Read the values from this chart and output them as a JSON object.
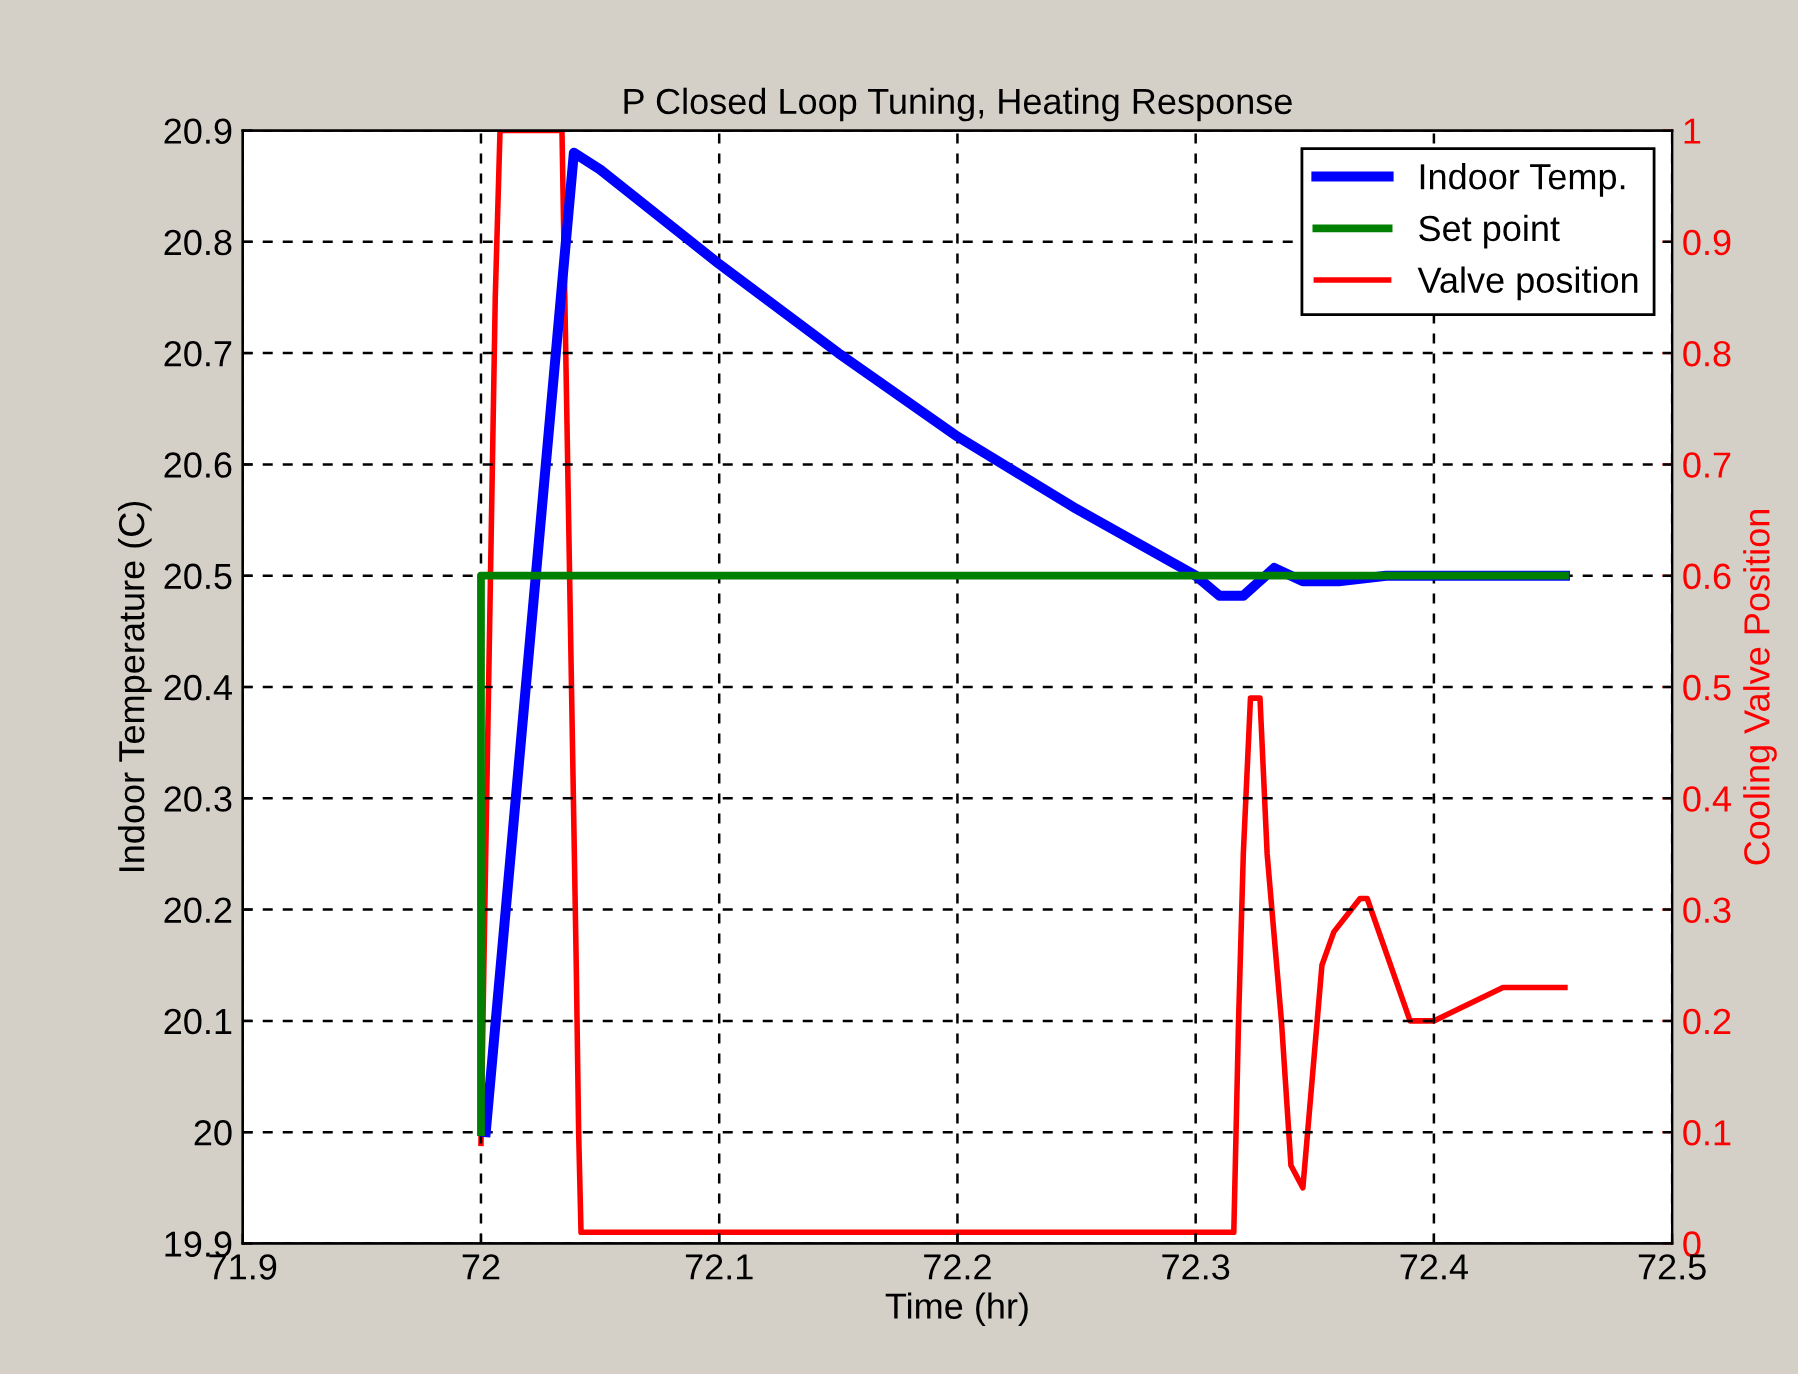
{
  "chart_data": {
    "type": "line",
    "title": "P Closed Loop Tuning, Heating Response",
    "xlabel": "Time (hr)",
    "ylabel": "Indoor Temperature (C)",
    "y2label": "Cooling Valve Position",
    "xlim": [
      71.9,
      72.5
    ],
    "xticks": [
      71.9,
      72,
      72.1,
      72.2,
      72.3,
      72.4,
      72.5
    ],
    "ylim": [
      19.9,
      20.9
    ],
    "yticks": [
      19.9,
      20,
      20.1,
      20.2,
      20.3,
      20.4,
      20.5,
      20.6,
      20.7,
      20.8,
      20.9
    ],
    "y2lim": [
      0,
      1
    ],
    "y2ticks": [
      0,
      0.1,
      0.2,
      0.3,
      0.4,
      0.5,
      0.6,
      0.7,
      0.8,
      0.9,
      1
    ],
    "grid": true,
    "legend": "top right",
    "marker": "none",
    "line_style": "solid",
    "series": [
      {
        "name": "Indoor Temp.",
        "color": "#0000ff",
        "x": [
          72.002,
          72.039,
          72.05,
          72.1,
          72.15,
          72.2,
          72.25,
          72.3,
          72.31,
          72.32,
          72.333,
          72.345,
          72.36,
          72.38,
          72.455
        ],
        "values": [
          20.0,
          20.88,
          20.865,
          20.78,
          20.7,
          20.625,
          20.56,
          20.5,
          20.482,
          20.482,
          20.507,
          20.495,
          20.495,
          20.5,
          20.5
        ]
      },
      {
        "name": "Set point",
        "color": "#008000",
        "x": [
          72.0,
          72.0,
          72.455
        ],
        "values": [
          20.0,
          20.5,
          20.5
        ]
      },
      {
        "name": "Valve position",
        "color": "#ff0000",
        "axis": "y2",
        "x": [
          72.0,
          72.002,
          72.004,
          72.006,
          72.008,
          72.034,
          72.036,
          72.038,
          72.04,
          72.041,
          72.042,
          72.316,
          72.318,
          72.32,
          72.323,
          72.327,
          72.33,
          72.336,
          72.34,
          72.345,
          72.353,
          72.358,
          72.369,
          72.372,
          72.39,
          72.4,
          72.429,
          72.455
        ],
        "values": [
          0.09,
          0.35,
          0.6,
          0.85,
          1.0,
          1.0,
          0.75,
          0.5,
          0.25,
          0.1,
          0.01,
          0.01,
          0.2,
          0.35,
          0.49,
          0.49,
          0.35,
          0.2,
          0.07,
          0.05,
          0.25,
          0.28,
          0.31,
          0.31,
          0.2,
          0.2,
          0.23,
          0.23
        ]
      }
    ]
  }
}
